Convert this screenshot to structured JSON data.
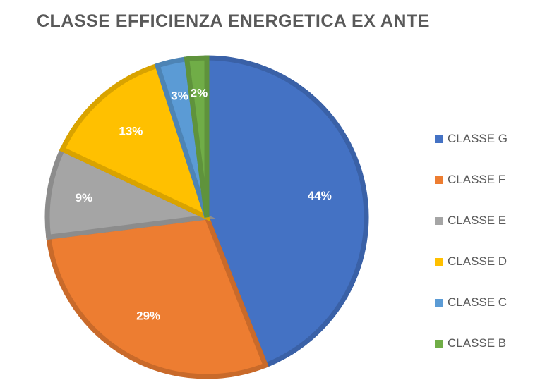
{
  "chart_data": {
    "type": "pie",
    "title": "CLASSE EFFICIENZA ENERGETICA EX ANTE",
    "categories": [
      "CLASSE G",
      "CLASSE F",
      "CLASSE E",
      "CLASSE D",
      "CLASSE C",
      "CLASSE B"
    ],
    "values": [
      44,
      29,
      9,
      13,
      3,
      2
    ],
    "labels": [
      "44%",
      "29%",
      "9%",
      "13%",
      "3%",
      "2%"
    ],
    "colors": [
      "#4472C4",
      "#ED7D31",
      "#A5A5A5",
      "#FFC000",
      "#5B9BD5",
      "#70AD47"
    ],
    "legend_position": "right"
  }
}
